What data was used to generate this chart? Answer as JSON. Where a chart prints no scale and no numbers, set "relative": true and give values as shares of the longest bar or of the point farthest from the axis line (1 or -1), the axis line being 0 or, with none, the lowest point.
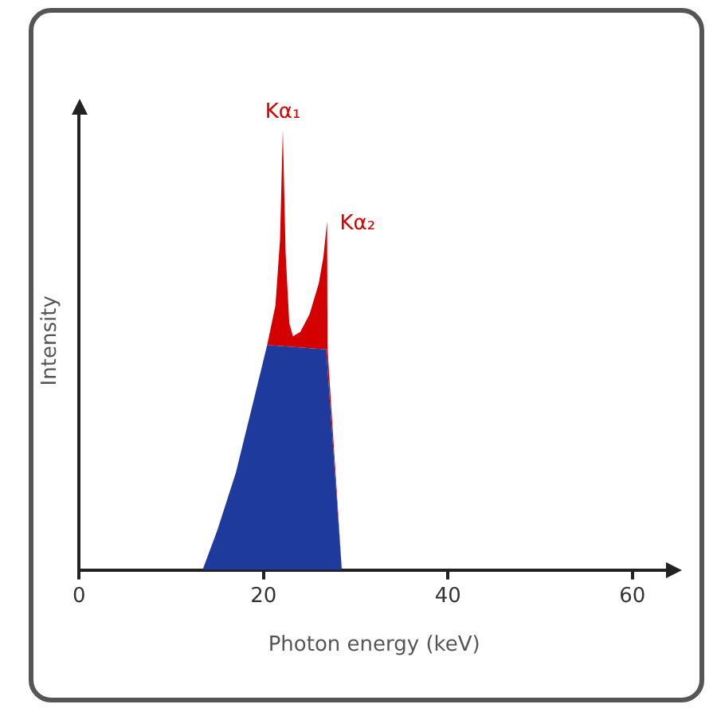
{
  "chart_data": {
    "type": "area",
    "relative": true,
    "xlabel": "Photon energy (keV)",
    "ylabel": "Intensity",
    "xlim": [
      0,
      64
    ],
    "xticks": [
      0,
      20,
      40,
      60
    ],
    "grid": false,
    "legend": false,
    "series": [
      {
        "color": "#1e3a9c",
        "x": [
          13.4,
          15,
          17,
          19,
          20.4,
          26.8,
          28.5
        ],
        "values": [
          0,
          0.09,
          0.22,
          0.39,
          0.51,
          0.5,
          0
        ]
      },
      {
        "color": "#d40000",
        "x": [
          13.4,
          15,
          17,
          19,
          20.4,
          21.3,
          21.8,
          22.1,
          22.4,
          22.8,
          23.2,
          24,
          25,
          26,
          26.5,
          26.9,
          26.95,
          28.5
        ],
        "values": [
          0,
          0.09,
          0.22,
          0.39,
          0.51,
          0.6,
          0.75,
          1,
          0.72,
          0.56,
          0.53,
          0.54,
          0.58,
          0.65,
          0.71,
          0.79,
          0.5,
          0
        ]
      }
    ],
    "annotations": [
      {
        "text": "Kα₁",
        "x": 22.1,
        "y": 1
      },
      {
        "text": "Kα₂",
        "x": 26.9,
        "y": 0.79
      }
    ]
  }
}
